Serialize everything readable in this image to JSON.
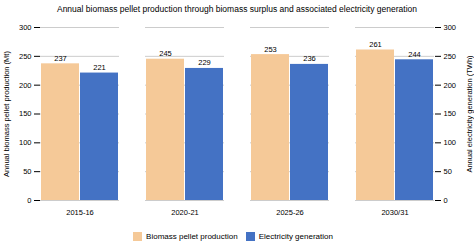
{
  "chart_data": {
    "type": "bar",
    "title": "Annual biomass pellet production through biomass surplus and associated electricity generation",
    "categories": [
      "2015-16",
      "2020-21",
      "2025-26",
      "2030/31"
    ],
    "series": [
      {
        "name": "Biomass pellet production",
        "color": "#f5c998",
        "values": [
          237,
          245,
          253,
          261
        ]
      },
      {
        "name": "Electricity generation",
        "color": "#4472c4",
        "values": [
          221,
          229,
          236,
          244
        ]
      }
    ],
    "ylabel": "Annual biomass pellet production (Mt)",
    "y2label": "Annual electricity generation (TWh)",
    "ylim": [
      0,
      300
    ],
    "yticks": [
      0,
      50,
      100,
      150,
      200,
      250,
      300
    ],
    "y2lim": [
      0,
      300
    ],
    "y2ticks": [
      0,
      50,
      100,
      150,
      200,
      250,
      300
    ],
    "grid": true,
    "data_labels": true,
    "legend": "bottom"
  }
}
